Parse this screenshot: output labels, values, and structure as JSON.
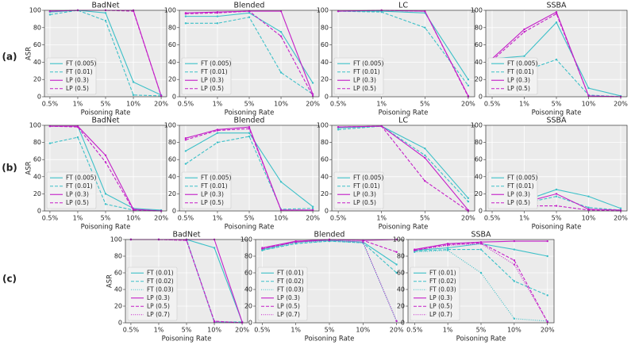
{
  "row_labels": [
    "(a)",
    "(b)",
    "(c)"
  ],
  "chart_data": [
    {
      "type": "line",
      "title": "BadNet",
      "categories": [
        "0.5%",
        "1%",
        "5%",
        "10%",
        "20%"
      ],
      "xlabel": "Poisoning Rate",
      "ylabel": "ASR",
      "ylim": [
        0,
        100
      ],
      "yticks": [
        0,
        20,
        40,
        60,
        80,
        100
      ],
      "grid": true,
      "legend": "lower left",
      "series": [
        {
          "name": "FT (0.005)",
          "color": "#3cc0c8",
          "linestyle": "solid",
          "values": [
            98,
            100,
            97,
            17,
            2
          ]
        },
        {
          "name": "FT (0.01)",
          "color": "#3cc0c8",
          "linestyle": "dashed",
          "values": [
            95,
            100,
            88,
            2,
            1
          ]
        },
        {
          "name": "LP (0.3)",
          "color": "#c41ec8",
          "linestyle": "solid",
          "values": [
            99,
            100,
            100,
            100,
            1
          ]
        },
        {
          "name": "LP (0.5)",
          "color": "#c41ec8",
          "linestyle": "dashed",
          "values": [
            99,
            100,
            100,
            99,
            1
          ]
        }
      ]
    },
    {
      "type": "line",
      "title": "Blended",
      "categories": [
        "0.5%",
        "1%",
        "5%",
        "10%",
        "20%"
      ],
      "xlabel": "Poisoning Rate",
      "ylim": [
        0,
        100
      ],
      "yticks": [
        0,
        20,
        40,
        60,
        80,
        100
      ],
      "grid": true,
      "legend": "lower left",
      "series": [
        {
          "name": "FT (0.005)",
          "color": "#3cc0c8",
          "linestyle": "solid",
          "values": [
            93,
            93,
            97,
            75,
            16
          ]
        },
        {
          "name": "FT (0.01)",
          "color": "#3cc0c8",
          "linestyle": "dashed",
          "values": [
            85,
            85,
            92,
            28,
            3
          ]
        },
        {
          "name": "LP (0.3)",
          "color": "#c41ec8",
          "linestyle": "solid",
          "values": [
            97,
            98,
            99,
            99,
            3
          ]
        },
        {
          "name": "LP (0.5)",
          "color": "#c41ec8",
          "linestyle": "dashed",
          "values": [
            96,
            97,
            99,
            70,
            1
          ]
        }
      ]
    },
    {
      "type": "line",
      "title": "LC",
      "categories": [
        "0.5%",
        "1%",
        "5%",
        "20%"
      ],
      "xlabel": "Poisoning Rate",
      "ylim": [
        0,
        100
      ],
      "yticks": [
        0,
        20,
        40,
        60,
        80,
        100
      ],
      "grid": true,
      "legend": "lower left",
      "series": [
        {
          "name": "FT (0.005)",
          "color": "#3cc0c8",
          "linestyle": "solid",
          "values": [
            99,
            99,
            97,
            20
          ]
        },
        {
          "name": "FT (0.01)",
          "color": "#3cc0c8",
          "linestyle": "dashed",
          "values": [
            99,
            98,
            80,
            13
          ]
        },
        {
          "name": "LP (0.3)",
          "color": "#c41ec8",
          "linestyle": "solid",
          "values": [
            99,
            100,
            99,
            1
          ]
        },
        {
          "name": "LP (0.5)",
          "color": "#c41ec8",
          "linestyle": "dashed",
          "values": [
            99,
            100,
            99,
            0
          ]
        }
      ]
    },
    {
      "type": "line",
      "title": "SSBA",
      "categories": [
        "0.5%",
        "1%",
        "5%",
        "10%",
        "20%"
      ],
      "xlabel": "Poisoning Rate",
      "ylim": [
        0,
        100
      ],
      "yticks": [
        0,
        20,
        40,
        60,
        80,
        100
      ],
      "grid": true,
      "legend": "lower left",
      "series": [
        {
          "name": "FT (0.005)",
          "color": "#3cc0c8",
          "linestyle": "solid",
          "values": [
            44,
            47,
            86,
            10,
            1
          ]
        },
        {
          "name": "FT (0.01)",
          "color": "#3cc0c8",
          "linestyle": "dashed",
          "values": [
            43,
            30,
            43,
            2,
            0
          ]
        },
        {
          "name": "LP (0.3)",
          "color": "#c41ec8",
          "linestyle": "solid",
          "values": [
            44,
            78,
            98,
            1,
            0
          ]
        },
        {
          "name": "LP (0.5)",
          "color": "#c41ec8",
          "linestyle": "dashed",
          "values": [
            42,
            75,
            96,
            1,
            0
          ]
        }
      ]
    },
    {
      "type": "line",
      "title": "BadNet",
      "categories": [
        "0.5%",
        "1%",
        "5%",
        "10%",
        "20%"
      ],
      "xlabel": "Poisoning Rate",
      "ylabel": "ASR",
      "ylim": [
        0,
        100
      ],
      "yticks": [
        0,
        20,
        40,
        60,
        80,
        100
      ],
      "grid": true,
      "legend": "lower left",
      "series": [
        {
          "name": "FT (0.005)",
          "color": "#3cc0c8",
          "linestyle": "solid",
          "values": [
            99,
            99,
            20,
            3,
            1
          ]
        },
        {
          "name": "FT (0.01)",
          "color": "#3cc0c8",
          "linestyle": "dashed",
          "values": [
            79,
            86,
            8,
            1,
            0
          ]
        },
        {
          "name": "LP (0.3)",
          "color": "#c41ec8",
          "linestyle": "solid",
          "values": [
            99,
            99,
            65,
            2,
            0
          ]
        },
        {
          "name": "LP (0.5)",
          "color": "#c41ec8",
          "linestyle": "dashed",
          "values": [
            99,
            98,
            57,
            1,
            0
          ]
        }
      ]
    },
    {
      "type": "line",
      "title": "Blended",
      "categories": [
        "0.5%",
        "1%",
        "5%",
        "10%",
        "20%"
      ],
      "xlabel": "Poisoning Rate",
      "ylim": [
        0,
        100
      ],
      "yticks": [
        0,
        20,
        40,
        60,
        80,
        100
      ],
      "grid": true,
      "legend": "lower left",
      "series": [
        {
          "name": "FT (0.005)",
          "color": "#3cc0c8",
          "linestyle": "solid",
          "values": [
            70,
            91,
            91,
            34,
            5
          ]
        },
        {
          "name": "FT (0.01)",
          "color": "#3cc0c8",
          "linestyle": "dashed",
          "values": [
            55,
            80,
            87,
            2,
            3
          ]
        },
        {
          "name": "LP (0.3)",
          "color": "#c41ec8",
          "linestyle": "solid",
          "values": [
            85,
            95,
            98,
            1,
            1
          ]
        },
        {
          "name": "LP (0.5)",
          "color": "#c41ec8",
          "linestyle": "dashed",
          "values": [
            83,
            94,
            96,
            1,
            1
          ]
        }
      ]
    },
    {
      "type": "line",
      "title": "LC",
      "categories": [
        "0.5%",
        "1%",
        "5%",
        "20%"
      ],
      "xlabel": "Poisoning Rate",
      "ylim": [
        0,
        100
      ],
      "yticks": [
        0,
        20,
        40,
        60,
        80,
        100
      ],
      "grid": true,
      "legend": "lower left",
      "series": [
        {
          "name": "FT (0.005)",
          "color": "#3cc0c8",
          "linestyle": "solid",
          "values": [
            97,
            99,
            73,
            15
          ]
        },
        {
          "name": "FT (0.01)",
          "color": "#3cc0c8",
          "linestyle": "dashed",
          "values": [
            95,
            99,
            65,
            11
          ]
        },
        {
          "name": "LP (0.3)",
          "color": "#c41ec8",
          "linestyle": "solid",
          "values": [
            98,
            99,
            62,
            1
          ]
        },
        {
          "name": "LP (0.5)",
          "color": "#c41ec8",
          "linestyle": "dashed",
          "values": [
            98,
            99,
            35,
            0
          ]
        }
      ]
    },
    {
      "type": "line",
      "title": "SSBA",
      "categories": [
        "0.5%",
        "1%",
        "5%",
        "10%",
        "20%"
      ],
      "xlabel": "Poisoning Rate",
      "ylim": [
        0,
        100
      ],
      "yticks": [
        0,
        20,
        40,
        60,
        80,
        100
      ],
      "grid": true,
      "legend": "lower left",
      "series": [
        {
          "name": "FT (0.005)",
          "color": "#3cc0c8",
          "linestyle": "solid",
          "values": [
            10,
            12,
            25,
            17,
            3
          ]
        },
        {
          "name": "FT (0.01)",
          "color": "#3cc0c8",
          "linestyle": "dashed",
          "values": [
            8,
            9,
            17,
            4,
            1
          ]
        },
        {
          "name": "LP (0.3)",
          "color": "#c41ec8",
          "linestyle": "solid",
          "values": [
            7,
            10,
            20,
            2,
            1
          ]
        },
        {
          "name": "LP (0.5)",
          "color": "#c41ec8",
          "linestyle": "dashed",
          "values": [
            6,
            6,
            6,
            1,
            0
          ]
        }
      ]
    },
    {
      "type": "line",
      "title": "BadNet",
      "categories": [
        "0.5%",
        "1%",
        "5%",
        "10%",
        "20%"
      ],
      "xlabel": "Poisoning Rate",
      "ylabel": "ASR",
      "ylim": [
        0,
        100
      ],
      "yticks": [
        0,
        20,
        40,
        60,
        80,
        100
      ],
      "grid": true,
      "legend": "lower left",
      "series": [
        {
          "name": "FT (0.01)",
          "color": "#3cc0c8",
          "linestyle": "solid",
          "values": [
            100,
            100,
            100,
            90,
            1
          ]
        },
        {
          "name": "FT (0.02)",
          "color": "#3cc0c8",
          "linestyle": "dashed",
          "values": [
            100,
            100,
            100,
            1,
            1
          ]
        },
        {
          "name": "FT (0.03)",
          "color": "#3cc0c8",
          "linestyle": "dotted",
          "values": [
            100,
            100,
            100,
            1,
            0
          ]
        },
        {
          "name": "LP (0.3)",
          "color": "#c41ec8",
          "linestyle": "solid",
          "values": [
            100,
            100,
            100,
            100,
            1
          ]
        },
        {
          "name": "LP (0.5)",
          "color": "#c41ec8",
          "linestyle": "dashed",
          "values": [
            100,
            100,
            99,
            2,
            0
          ]
        },
        {
          "name": "LP (0.7)",
          "color": "#c41ec8",
          "linestyle": "dotted",
          "values": [
            100,
            100,
            99,
            1,
            0
          ]
        }
      ]
    },
    {
      "type": "line",
      "title": "Blended",
      "categories": [
        "0.5%",
        "1%",
        "5%",
        "10%",
        "20%"
      ],
      "xlabel": "Poisoning Rate",
      "ylim": [
        0,
        100
      ],
      "yticks": [
        0,
        20,
        40,
        60,
        80,
        100
      ],
      "grid": true,
      "legend": "lower left",
      "series": [
        {
          "name": "FT (0.01)",
          "color": "#3cc0c8",
          "linestyle": "solid",
          "values": [
            88,
            97,
            99,
            97,
            70
          ]
        },
        {
          "name": "FT (0.02)",
          "color": "#3cc0c8",
          "linestyle": "dashed",
          "values": [
            87,
            95,
            98,
            96,
            60
          ]
        },
        {
          "name": "FT (0.03)",
          "color": "#3cc0c8",
          "linestyle": "dotted",
          "values": [
            87,
            96,
            98,
            96,
            2
          ]
        },
        {
          "name": "LP (0.3)",
          "color": "#c41ec8",
          "linestyle": "solid",
          "values": [
            90,
            98,
            100,
            99,
            100
          ]
        },
        {
          "name": "LP (0.5)",
          "color": "#c41ec8",
          "linestyle": "dashed",
          "values": [
            89,
            97,
            100,
            99,
            85
          ]
        },
        {
          "name": "LP (0.7)",
          "color": "#c41ec8",
          "linestyle": "dotted",
          "values": [
            89,
            97,
            99,
            97,
            2
          ]
        }
      ]
    },
    {
      "type": "line",
      "title": "SSBA",
      "categories": [
        "0.5%",
        "1%",
        "5%",
        "10%",
        "20%"
      ],
      "xlabel": "Poisoning Rate",
      "ylim": [
        0,
        100
      ],
      "yticks": [
        0,
        20,
        40,
        60,
        80,
        100
      ],
      "grid": true,
      "legend": "lower left",
      "series": [
        {
          "name": "FT (0.01)",
          "color": "#3cc0c8",
          "linestyle": "solid",
          "values": [
            87,
            90,
            95,
            88,
            80
          ]
        },
        {
          "name": "FT (0.02)",
          "color": "#3cc0c8",
          "linestyle": "dashed",
          "values": [
            86,
            88,
            88,
            50,
            33
          ]
        },
        {
          "name": "FT (0.03)",
          "color": "#3cc0c8",
          "linestyle": "dotted",
          "values": [
            85,
            87,
            60,
            5,
            2
          ]
        },
        {
          "name": "LP (0.3)",
          "color": "#c41ec8",
          "linestyle": "solid",
          "values": [
            88,
            95,
            97,
            98,
            98
          ]
        },
        {
          "name": "LP (0.5)",
          "color": "#c41ec8",
          "linestyle": "dashed",
          "values": [
            87,
            94,
            96,
            75,
            1
          ]
        },
        {
          "name": "LP (0.7)",
          "color": "#c41ec8",
          "linestyle": "dotted",
          "values": [
            87,
            93,
            95,
            70,
            1
          ]
        }
      ]
    }
  ]
}
